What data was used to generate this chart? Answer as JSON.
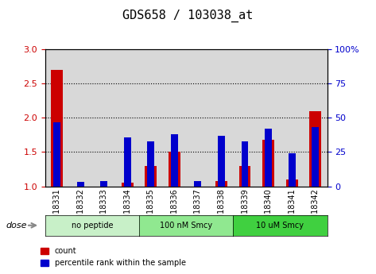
{
  "title": "GDS658 / 103038_at",
  "samples": [
    "GSM18331",
    "GSM18332",
    "GSM18333",
    "GSM18334",
    "GSM18335",
    "GSM18336",
    "GSM18337",
    "GSM18338",
    "GSM18339",
    "GSM18340",
    "GSM18341",
    "GSM18342"
  ],
  "count_values": [
    2.7,
    1.0,
    1.0,
    1.05,
    1.3,
    1.5,
    1.0,
    1.08,
    1.3,
    1.68,
    1.1,
    2.1
  ],
  "percentile_values": [
    47,
    3,
    4,
    36,
    33,
    38,
    4,
    37,
    33,
    42,
    24,
    43
  ],
  "ylim_left": [
    1.0,
    3.0
  ],
  "ylim_right": [
    0,
    100
  ],
  "yticks_left": [
    1.0,
    1.5,
    2.0,
    2.5,
    3.0
  ],
  "yticks_right": [
    0,
    25,
    50,
    75,
    100
  ],
  "groups": [
    {
      "label": "no peptide",
      "start": 0,
      "end": 3,
      "color": "#c8f0c8"
    },
    {
      "label": "100 nM Smcy",
      "start": 4,
      "end": 7,
      "color": "#90e890"
    },
    {
      "label": "10 uM Smcy",
      "start": 8,
      "end": 11,
      "color": "#40d040"
    }
  ],
  "bar_color_red": "#cc0000",
  "bar_color_blue": "#0000cc",
  "background_plot": "#ffffff",
  "background_tick": "#d8d8d8",
  "title_fontsize": 11,
  "tick_fontsize": 7,
  "dose_label": "dose",
  "legend_count": "count",
  "legend_percentile": "percentile rank within the sample"
}
